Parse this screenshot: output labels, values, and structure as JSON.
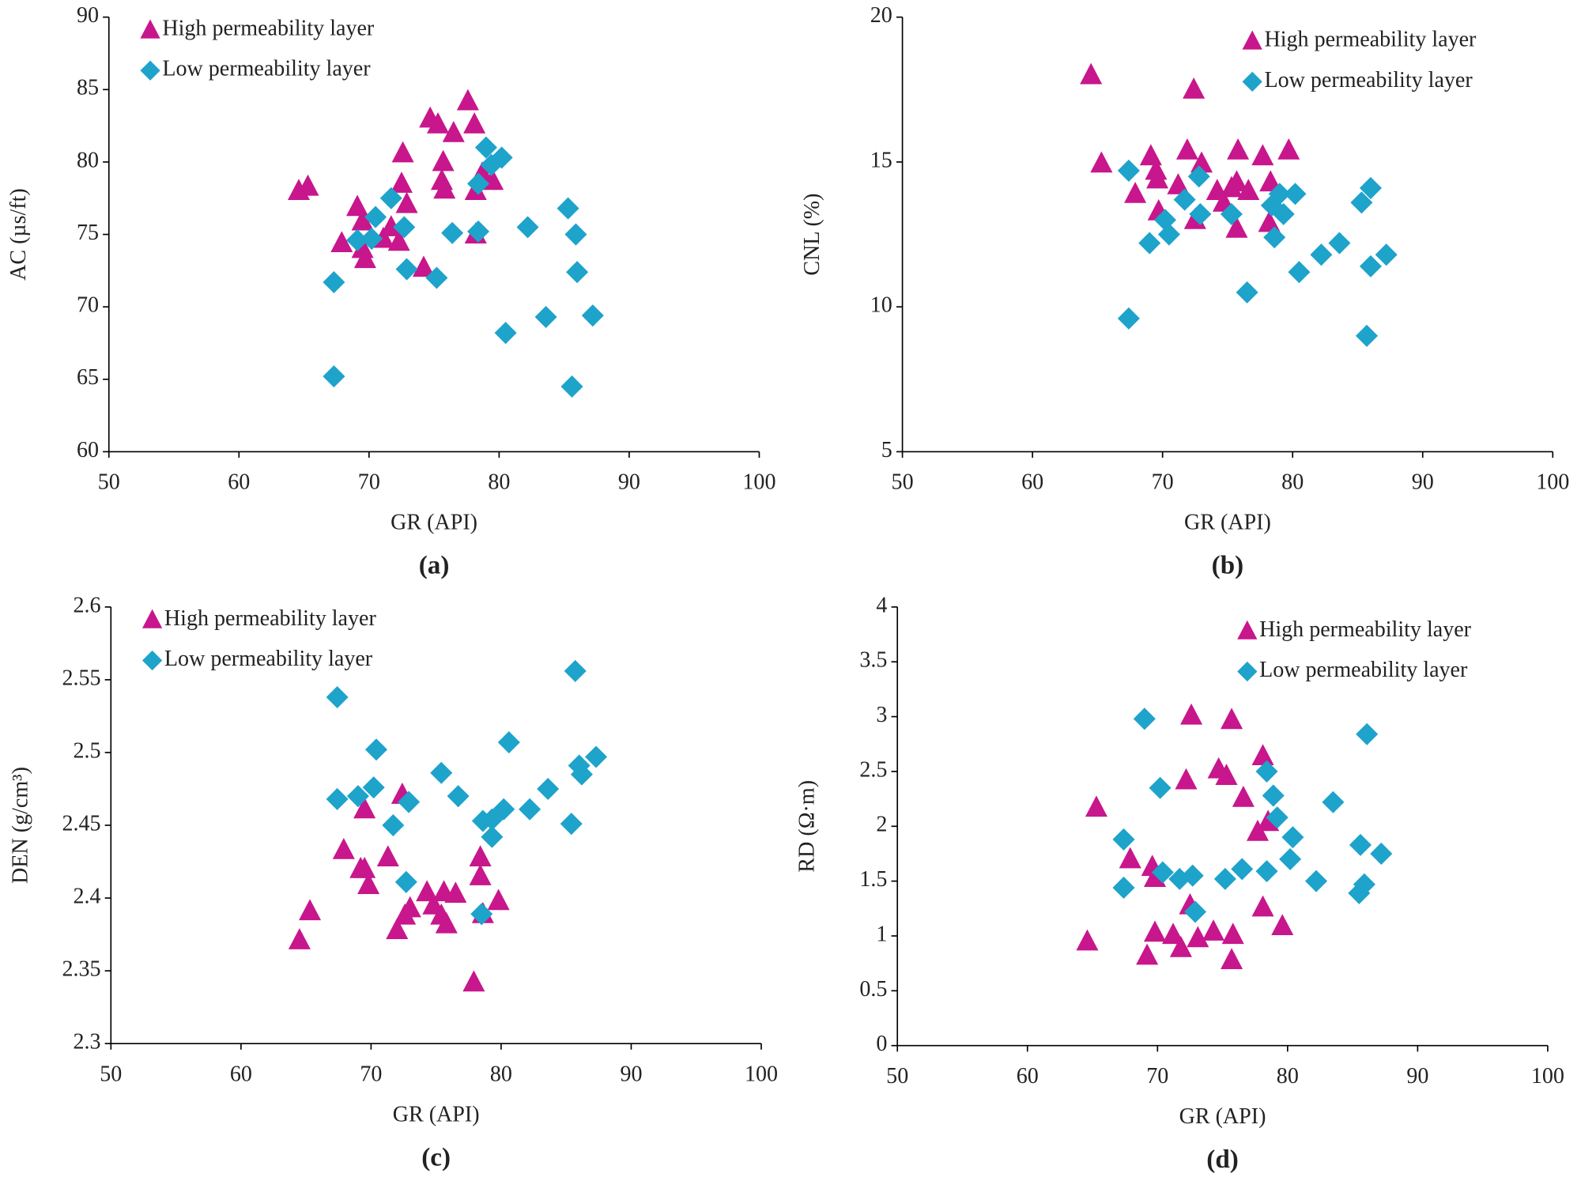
{
  "chart_data": [
    {
      "type": "scatter",
      "caption": "(a)",
      "xlabel": "GR (API)",
      "ylabel": "AC (µs/ft)",
      "xlim": [
        50,
        100
      ],
      "xticks": [
        50,
        60,
        70,
        80,
        90,
        100
      ],
      "ylim": [
        60,
        90
      ],
      "yticks": [
        60,
        65,
        70,
        75,
        80,
        85,
        90
      ],
      "legend": "upper left",
      "series": [
        {
          "name": "High permeability layer",
          "color": "#c8168c",
          "marker": "triangle",
          "x": [
            64.6,
            65.3,
            67.9,
            69.1,
            69.5,
            69.5,
            69.7,
            71.1,
            71.7,
            72.3,
            72.5,
            72.6,
            72.9,
            74.2,
            74.7,
            75.3,
            75.7,
            75.6,
            75.8,
            76.5,
            77.6,
            78.1,
            78.2,
            78.2,
            78.7,
            79.5
          ],
          "y": [
            78.0,
            78.3,
            74.4,
            76.9,
            75.9,
            74.0,
            73.3,
            74.7,
            75.5,
            74.5,
            78.5,
            80.6,
            77.1,
            72.7,
            83.0,
            82.6,
            80.0,
            78.7,
            78.1,
            82.0,
            84.2,
            82.6,
            78.0,
            75.0,
            79.2,
            78.7
          ]
        },
        {
          "name": "Low permeability layer",
          "color": "#1ea3cb",
          "marker": "diamond",
          "x": [
            67.3,
            67.3,
            69.1,
            70.2,
            70.5,
            71.7,
            72.7,
            72.9,
            75.2,
            76.4,
            78.4,
            78.4,
            79.0,
            79.4,
            80.2,
            80.5,
            82.2,
            83.6,
            85.3,
            85.6,
            85.9,
            86.0,
            87.2
          ],
          "y": [
            71.7,
            65.2,
            74.6,
            74.7,
            76.2,
            77.5,
            75.5,
            72.6,
            72.0,
            75.1,
            78.5,
            75.2,
            81.0,
            79.8,
            80.3,
            68.2,
            75.5,
            69.3,
            76.8,
            64.5,
            75.0,
            72.4,
            69.4
          ]
        }
      ]
    },
    {
      "type": "scatter",
      "caption": "(b)",
      "xlabel": "GR (API)",
      "ylabel": "CNL (%)",
      "xlim": [
        50,
        100
      ],
      "xticks": [
        50,
        60,
        70,
        80,
        90,
        100
      ],
      "ylim": [
        5,
        20
      ],
      "yticks": [
        5,
        10,
        15,
        20
      ],
      "legend": "upper right",
      "series": [
        {
          "name": "High permeability layer",
          "color": "#c8168c",
          "marker": "triangle",
          "x": [
            64.5,
            65.3,
            67.9,
            69.1,
            69.5,
            69.6,
            69.7,
            71.2,
            71.9,
            72.4,
            72.5,
            73.0,
            74.2,
            74.7,
            75.3,
            75.7,
            75.8,
            75.7,
            76.6,
            77.7,
            78.3,
            78.2,
            79.7
          ],
          "y": [
            18.0,
            14.95,
            13.9,
            15.2,
            14.7,
            14.4,
            13.3,
            14.2,
            15.4,
            17.5,
            13.0,
            14.95,
            14.0,
            13.6,
            14.1,
            14.3,
            15.4,
            12.7,
            14.0,
            15.2,
            14.3,
            12.9,
            15.4
          ]
        },
        {
          "name": "Low permeability layer",
          "color": "#1ea3cb",
          "marker": "diamond",
          "x": [
            67.4,
            67.4,
            69.0,
            70.2,
            70.5,
            71.7,
            72.8,
            72.9,
            75.3,
            76.5,
            78.4,
            78.6,
            79.0,
            79.3,
            80.2,
            80.5,
            82.2,
            83.6,
            85.3,
            85.7,
            86.0,
            86.0,
            87.2
          ],
          "y": [
            14.7,
            9.6,
            12.2,
            13.0,
            12.5,
            13.7,
            14.5,
            13.2,
            13.2,
            10.5,
            13.5,
            12.4,
            13.9,
            13.2,
            13.9,
            11.2,
            11.8,
            12.2,
            13.6,
            9.0,
            14.1,
            11.4,
            11.8
          ]
        }
      ]
    },
    {
      "type": "scatter",
      "caption": "(c)",
      "xlabel": "GR (API)",
      "ylabel": "DEN (g/cm³)",
      "xlim": [
        50,
        100
      ],
      "xticks": [
        50,
        60,
        70,
        80,
        90,
        100
      ],
      "ylim": [
        2.3,
        2.6
      ],
      "yticks": [
        2.3,
        2.35,
        2.4,
        2.45,
        2.5,
        2.55,
        2.6
      ],
      "legend": "upper left",
      "series": [
        {
          "name": "High permeability layer",
          "color": "#c8168c",
          "marker": "triangle",
          "x": [
            64.5,
            65.3,
            67.9,
            69.2,
            69.5,
            69.5,
            69.8,
            71.3,
            72.0,
            72.4,
            72.6,
            73.0,
            74.3,
            74.8,
            75.4,
            75.6,
            75.8,
            76.5,
            77.9,
            78.4,
            78.4,
            78.6,
            79.8
          ],
          "y": [
            2.371,
            2.391,
            2.433,
            2.42,
            2.461,
            2.42,
            2.409,
            2.428,
            2.378,
            2.471,
            2.388,
            2.393,
            2.404,
            2.395,
            2.388,
            2.404,
            2.382,
            2.403,
            2.342,
            2.428,
            2.415,
            2.389,
            2.398
          ]
        },
        {
          "name": "Low permeability layer",
          "color": "#1ea3cb",
          "marker": "diamond",
          "x": [
            67.4,
            67.4,
            69.0,
            70.4,
            70.2,
            71.7,
            72.7,
            72.9,
            75.4,
            76.7,
            78.5,
            78.6,
            79.3,
            79.3,
            80.2,
            80.6,
            82.2,
            83.6,
            85.4,
            85.7,
            86.0,
            86.2,
            87.3
          ],
          "y": [
            2.538,
            2.468,
            2.47,
            2.502,
            2.476,
            2.45,
            2.411,
            2.466,
            2.486,
            2.47,
            2.389,
            2.453,
            2.442,
            2.454,
            2.461,
            2.507,
            2.461,
            2.475,
            2.451,
            2.556,
            2.491,
            2.485,
            2.497
          ]
        }
      ]
    },
    {
      "type": "scatter",
      "caption": "(d)",
      "xlabel": "GR (API)",
      "ylabel": "RD (Ω·m)",
      "xlim": [
        50,
        100
      ],
      "xticks": [
        50,
        60,
        70,
        80,
        90,
        100
      ],
      "ylim": [
        0,
        4
      ],
      "yticks": [
        0,
        0.5,
        1,
        1.5,
        2,
        2.5,
        3,
        3.5,
        4
      ],
      "legend": "upper right",
      "series": [
        {
          "name": "High permeability layer",
          "color": "#c8168c",
          "marker": "triangle",
          "x": [
            64.6,
            65.3,
            67.9,
            69.2,
            69.6,
            69.8,
            69.8,
            71.2,
            71.8,
            72.2,
            72.5,
            72.6,
            73.1,
            74.3,
            74.7,
            75.3,
            75.7,
            75.7,
            75.8,
            76.6,
            77.7,
            78.1,
            78.1,
            78.5,
            79.6
          ],
          "y": [
            0.95,
            2.17,
            1.7,
            0.82,
            1.63,
            1.53,
            1.03,
            1.01,
            0.89,
            2.42,
            1.28,
            3.01,
            0.98,
            1.04,
            2.52,
            2.46,
            2.97,
            0.78,
            1.01,
            2.26,
            1.95,
            2.64,
            1.26,
            2.04,
            1.09
          ]
        },
        {
          "name": "Low permeability layer",
          "color": "#1ea3cb",
          "marker": "diamond",
          "x": [
            67.4,
            67.4,
            69.0,
            70.2,
            70.4,
            71.7,
            72.7,
            72.9,
            75.2,
            76.5,
            78.4,
            78.4,
            78.9,
            79.2,
            80.2,
            80.4,
            82.2,
            83.5,
            85.5,
            85.6,
            85.9,
            86.1,
            87.2
          ],
          "y": [
            1.88,
            1.44,
            2.98,
            2.35,
            1.58,
            1.52,
            1.55,
            1.22,
            1.52,
            1.61,
            2.5,
            1.59,
            2.28,
            2.08,
            1.7,
            1.9,
            1.5,
            2.22,
            1.39,
            1.83,
            1.47,
            2.84,
            1.75
          ]
        }
      ]
    }
  ]
}
